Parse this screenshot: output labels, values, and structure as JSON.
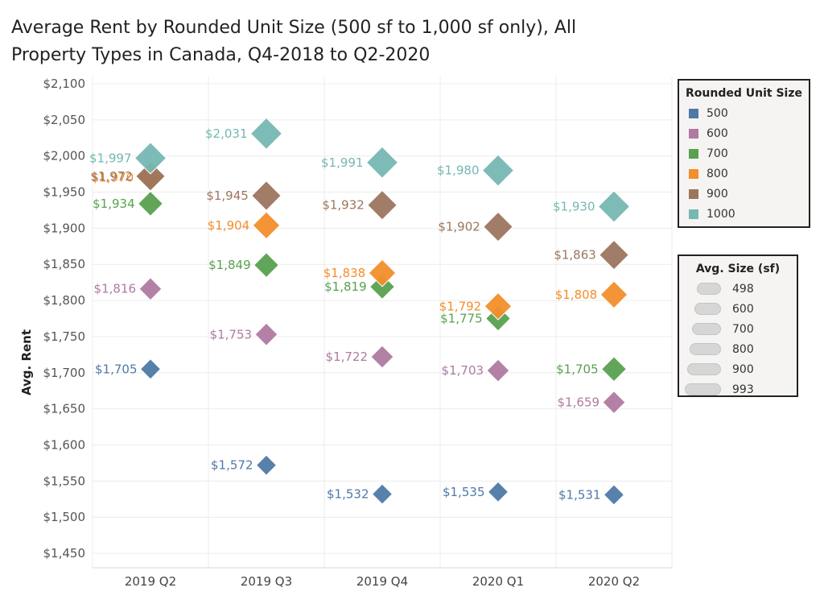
{
  "chart_data": {
    "type": "scatter",
    "title": "Average Rent by Rounded Unit Size (500 sf to 1,000 sf only), All Property Types in Canada, Q4-2018 to Q2-2020",
    "xlabel": "",
    "ylabel": "Avg. Rent",
    "ylim": [
      1430,
      2110
    ],
    "yticks": [
      1450,
      1500,
      1550,
      1600,
      1650,
      1700,
      1750,
      1800,
      1850,
      1900,
      1950,
      2000,
      2050,
      2100
    ],
    "ytick_labels": [
      "$1,450",
      "$1,500",
      "$1,550",
      "$1,600",
      "$1,650",
      "$1,700",
      "$1,750",
      "$1,800",
      "$1,850",
      "$1,900",
      "$1,950",
      "$2,000",
      "$2,050",
      "$2,100"
    ],
    "categories": [
      "2019 Q2",
      "2019 Q3",
      "2019 Q4",
      "2020 Q1",
      "2020 Q2"
    ],
    "grid": true,
    "marker": "diamond",
    "series": [
      {
        "name": "500",
        "color": "#4e79a7",
        "values": [
          1705,
          1572,
          1532,
          1535,
          1531
        ],
        "labels": [
          "$1,705",
          "$1,572",
          "$1,532",
          "$1,535",
          "$1,531"
        ]
      },
      {
        "name": "600",
        "color": "#b07aa1",
        "values": [
          1816,
          1753,
          1722,
          1703,
          1659
        ],
        "labels": [
          "$1,816",
          "$1,753",
          "$1,722",
          "$1,703",
          "$1,659"
        ]
      },
      {
        "name": "700",
        "color": "#59a14f",
        "values": [
          1934,
          1849,
          1819,
          1775,
          1705
        ],
        "labels": [
          "$1,934",
          "$1,849",
          "$1,819",
          "$1,775",
          "$1,705"
        ]
      },
      {
        "name": "800",
        "color": "#f28e2b",
        "values": [
          1970,
          1904,
          1838,
          1792,
          1808
        ],
        "labels": [
          "$1,970",
          "$1,904",
          "$1,838",
          "$1,792",
          "$1,808"
        ]
      },
      {
        "name": "900",
        "color": "#9c755f",
        "values": [
          1972,
          1945,
          1932,
          1902,
          1863
        ],
        "labels": [
          "$1,972",
          "$1,945",
          "$1,932",
          "$1,902",
          "$1,863"
        ]
      },
      {
        "name": "1000",
        "color": "#76b7b2",
        "values": [
          1997,
          2031,
          1991,
          1980,
          1930
        ],
        "labels": [
          "$1,997",
          "$2,031",
          "$1,991",
          "$1,980",
          "$1,930"
        ]
      }
    ],
    "legend_color": {
      "title": "Rounded Unit Size",
      "position": "right",
      "items": [
        "500",
        "600",
        "700",
        "800",
        "900",
        "1000"
      ]
    },
    "legend_size": {
      "title": "Avg. Size (sf)",
      "position": "right",
      "items": [
        "498",
        "600",
        "700",
        "800",
        "900",
        "993"
      ],
      "values": [
        498,
        600,
        700,
        800,
        900,
        993
      ]
    }
  }
}
